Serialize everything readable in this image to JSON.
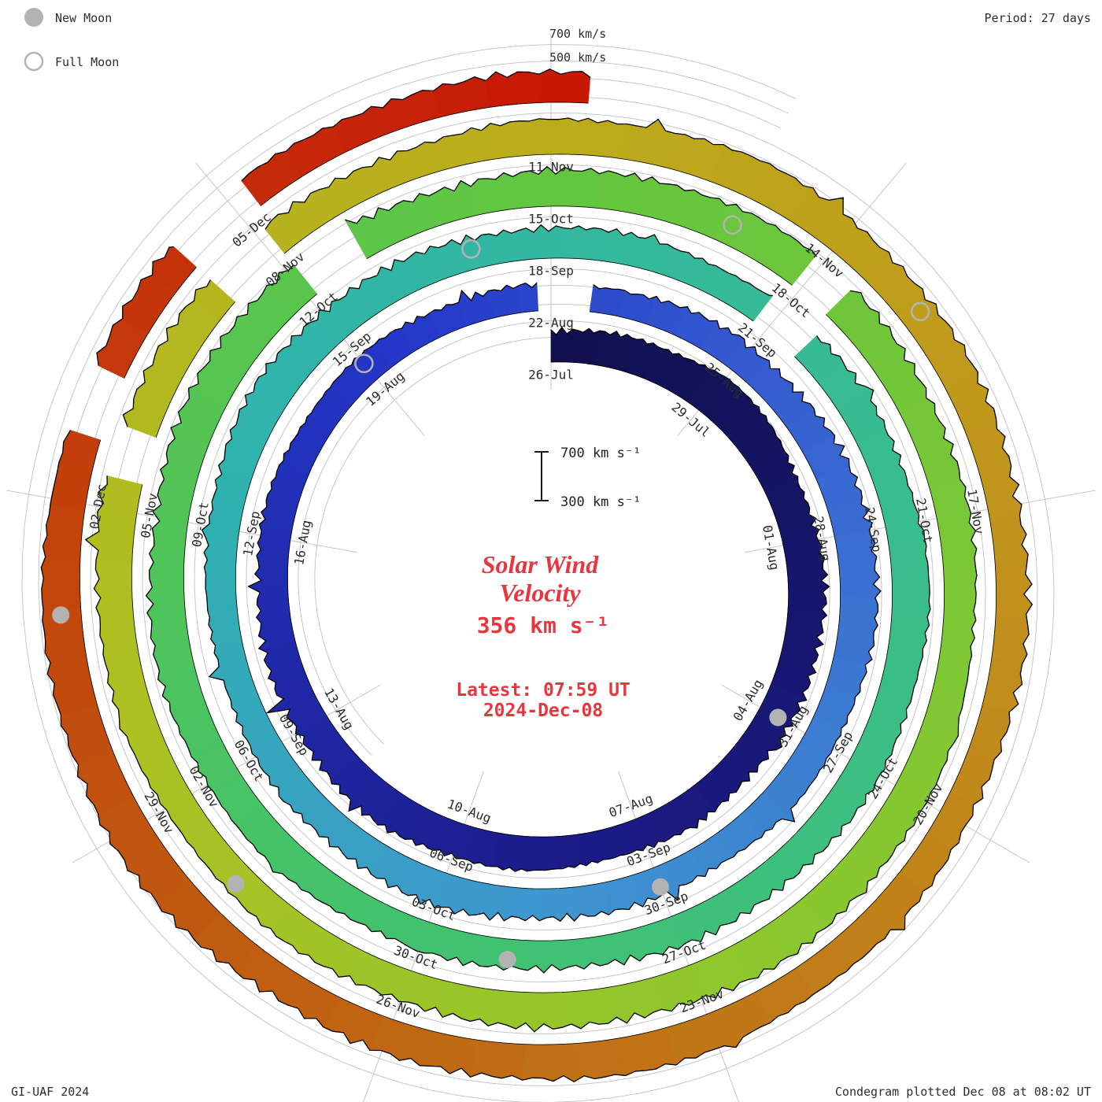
{
  "legend": {
    "new_moon": "New Moon",
    "full_moon": "Full Moon"
  },
  "header": {
    "period": "Period: 27 days"
  },
  "footer": {
    "credit": "GI-UAF 2024",
    "plotted": "Condegram plotted Dec 08 at 08:02 UT"
  },
  "grid_labels": {
    "outer": "700 km/s",
    "inner": "500 km/s"
  },
  "center": {
    "scale_top": "700 km s⁻¹",
    "scale_bottom": "300 km s⁻¹",
    "title_line1": "Solar Wind",
    "title_line2": "Velocity",
    "current_value": "356 km s⁻¹",
    "latest_line1": "Latest: 07:59 UT",
    "latest_line2": "2024-Dec-08"
  },
  "chart_data": {
    "type": "spiral-area (condegram)",
    "title": "Solar Wind Velocity",
    "units": "km/s",
    "current_value_km_s": 356,
    "latest_utc": "2024-Dec-08 07:59 UT",
    "plotted_utc": "Dec 08 at 08:02 UT",
    "period_days": 27,
    "orientation": "clockwise, outward in time",
    "start_date": "2024-07-26",
    "end_date": "2024-12-08",
    "total_days": 135.33,
    "scale_bar": {
      "max_km_s": 700,
      "min_km_s": 300
    },
    "grid_levels_km_s": [
      300,
      500,
      700
    ],
    "label_step_days": 3,
    "label_texts": [
      "26-Jul",
      "29-Jul",
      "01-Aug",
      "04-Aug",
      "07-Aug",
      "10-Aug",
      "13-Aug",
      "16-Aug",
      "19-Aug",
      "22-Aug",
      "25-Aug",
      "28-Aug",
      "31-Aug",
      "03-Sep",
      "06-Sep",
      "09-Sep",
      "12-Sep",
      "15-Sep",
      "18-Sep",
      "21-Sep",
      "24-Sep",
      "27-Sep",
      "30-Sep",
      "03-Oct",
      "06-Oct",
      "09-Oct",
      "12-Oct",
      "15-Oct",
      "18-Oct",
      "21-Oct",
      "24-Oct",
      "27-Oct",
      "30-Oct",
      "02-Nov",
      "05-Nov",
      "08-Nov",
      "11-Nov",
      "14-Nov",
      "17-Nov",
      "20-Nov",
      "23-Nov",
      "26-Nov",
      "29-Nov",
      "02-Dec",
      "05-Dec"
    ],
    "velocity_km_s": [
      380,
      400,
      430,
      520,
      480,
      430,
      420,
      450,
      430,
      400,
      390,
      380,
      370,
      380,
      400,
      420,
      450,
      430,
      410,
      390,
      380,
      370,
      360,
      350,
      340,
      330,
      320,
      310,
      320,
      340,
      360,
      380,
      420,
      460,
      440,
      410,
      390,
      370,
      350,
      340,
      360,
      380,
      400,
      390,
      370,
      360,
      350,
      340,
      380,
      420,
      450,
      430,
      400,
      380,
      370,
      360,
      350,
      360,
      380,
      400,
      420,
      440,
      420,
      400,
      380,
      370,
      360,
      350,
      340,
      350,
      370,
      390,
      410,
      430,
      420,
      400,
      440,
      480,
      460,
      430,
      410,
      420,
      450,
      470,
      450,
      430,
      410,
      390,
      380,
      400,
      420,
      440,
      460,
      440,
      420,
      400,
      390,
      380,
      370,
      380,
      400,
      430,
      450,
      430,
      410,
      390,
      380,
      370,
      420,
      440,
      460,
      440,
      420,
      400,
      390,
      380,
      370,
      360,
      380,
      400,
      420,
      440,
      420,
      400,
      390,
      450,
      500,
      480,
      450,
      430,
      410,
      390,
      380,
      370,
      360,
      356
    ],
    "gaps_days": [
      [
        26.8,
        27.6
      ],
      [
        56.8,
        57.5
      ],
      [
        78.1,
        78.8
      ],
      [
        83.9,
        84.4
      ],
      [
        102.3,
        102.8
      ],
      [
        104.4,
        105.1
      ],
      [
        129.6,
        130.2
      ],
      [
        131.4,
        132.2
      ]
    ],
    "moons": {
      "new_moon_days": [
        9,
        39,
        68,
        98,
        128
      ],
      "new_moon_dates": [
        "2024-08-04",
        "2024-09-03",
        "2024-10-02",
        "2024-11-01",
        "2024-12-01"
      ],
      "full_moon_days": [
        24,
        53,
        83,
        112
      ],
      "full_moon_dates": [
        "2024-08-19",
        "2024-09-17",
        "2024-10-17",
        "2024-11-15"
      ]
    },
    "colormap": [
      [
        0.0,
        "#10104e"
      ],
      [
        0.1,
        "#1c1c8a"
      ],
      [
        0.18,
        "#2436c8"
      ],
      [
        0.24,
        "#3a6ad2"
      ],
      [
        0.3,
        "#3e96cf"
      ],
      [
        0.36,
        "#2fb3ae"
      ],
      [
        0.44,
        "#38bd8f"
      ],
      [
        0.52,
        "#44c36a"
      ],
      [
        0.6,
        "#63c63f"
      ],
      [
        0.68,
        "#8cc72e"
      ],
      [
        0.74,
        "#adc122"
      ],
      [
        0.8,
        "#bcab1b"
      ],
      [
        0.85,
        "#c1901c"
      ],
      [
        0.9,
        "#bf6d14"
      ],
      [
        0.95,
        "#c2440c"
      ],
      [
        1.0,
        "#c81606"
      ]
    ],
    "colors": {
      "grid": "#c6c6c6",
      "trace": "#000000",
      "moon": "#b3b3b3",
      "label": "#2b2b2b",
      "accent": "#e9363e"
    }
  }
}
